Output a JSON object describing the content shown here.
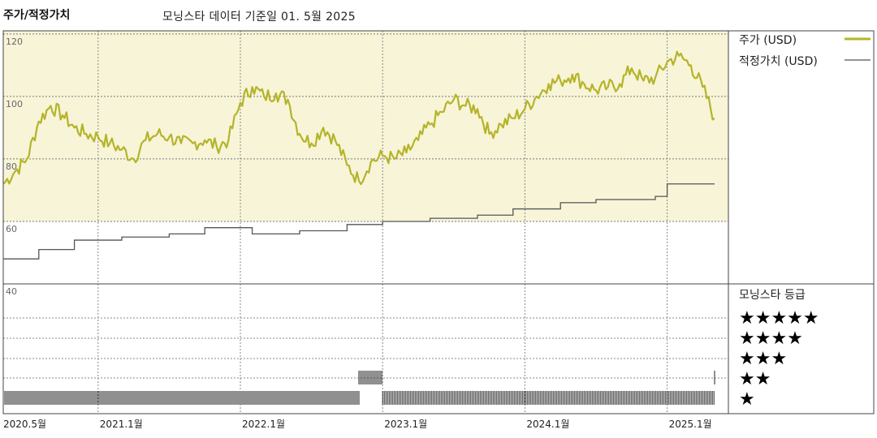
{
  "header": {
    "left_title": "주가/적정가치",
    "data_note": "모닝스타 데이터 기준일 01. 5월 2025"
  },
  "legend": {
    "price_label": "주가 (USD)",
    "fair_label": "적정가치 (USD)",
    "rating_title": "모닝스타 등급"
  },
  "colors": {
    "price_line": "#b4b42a",
    "fair_line": "#555555",
    "plot_bg": "#f8f4d8",
    "bars": "#222222"
  },
  "chart_data": {
    "type": "line",
    "y_axis": {
      "ticks": [
        40,
        60,
        80,
        100,
        120
      ],
      "ylim": [
        40,
        121
      ],
      "grid": true
    },
    "x_axis": {
      "tick_labels": [
        "2020.5월",
        "2021.1월",
        "2022.1월",
        "2023.1월",
        "2024.1월",
        "2025.1월"
      ],
      "tick_dates": [
        "2020-05",
        "2021-01",
        "2022-01",
        "2023-01",
        "2024-01",
        "2025-01"
      ],
      "xlim": [
        "2020-05",
        "2025-05"
      ]
    },
    "series": [
      {
        "name": "주가 (USD)",
        "points": [
          [
            "2020-05",
            72
          ],
          [
            "2020-06",
            76
          ],
          [
            "2020-07",
            80
          ],
          [
            "2020-08",
            92
          ],
          [
            "2020-09",
            97
          ],
          [
            "2020-10",
            94
          ],
          [
            "2020-11",
            90
          ],
          [
            "2020-12",
            88
          ],
          [
            "2021-01",
            87
          ],
          [
            "2021-02",
            85
          ],
          [
            "2021-03",
            83
          ],
          [
            "2021-04",
            80
          ],
          [
            "2021-05",
            86
          ],
          [
            "2021-06",
            88
          ],
          [
            "2021-07",
            87
          ],
          [
            "2021-08",
            85
          ],
          [
            "2021-09",
            85
          ],
          [
            "2021-10",
            86
          ],
          [
            "2021-11",
            84
          ],
          [
            "2021-12",
            86
          ],
          [
            "2022-01",
            98
          ],
          [
            "2022-02",
            103
          ],
          [
            "2022-03",
            100
          ],
          [
            "2022-04",
            101
          ],
          [
            "2022-05",
            99
          ],
          [
            "2022-06",
            88
          ],
          [
            "2022-07",
            85
          ],
          [
            "2022-08",
            90
          ],
          [
            "2022-09",
            86
          ],
          [
            "2022-10",
            78
          ],
          [
            "2022-11",
            73
          ],
          [
            "2022-12",
            79
          ],
          [
            "2023-01",
            81
          ],
          [
            "2023-02",
            80
          ],
          [
            "2023-03",
            82
          ],
          [
            "2023-04",
            86
          ],
          [
            "2023-05",
            91
          ],
          [
            "2023-06",
            95
          ],
          [
            "2023-07",
            99
          ],
          [
            "2023-08",
            97
          ],
          [
            "2023-09",
            96
          ],
          [
            "2023-10",
            88
          ],
          [
            "2023-11",
            91
          ],
          [
            "2023-12",
            93
          ],
          [
            "2024-01",
            96
          ],
          [
            "2024-02",
            100
          ],
          [
            "2024-03",
            104
          ],
          [
            "2024-04",
            105
          ],
          [
            "2024-05",
            107
          ],
          [
            "2024-06",
            104
          ],
          [
            "2024-07",
            102
          ],
          [
            "2024-08",
            103
          ],
          [
            "2024-09",
            104
          ],
          [
            "2024-10",
            109
          ],
          [
            "2024-11",
            105
          ],
          [
            "2024-12",
            106
          ],
          [
            "2025-01",
            111
          ],
          [
            "2025-02",
            113
          ],
          [
            "2025-03",
            110
          ],
          [
            "2025-04",
            103
          ],
          [
            "2025-05",
            93
          ]
        ]
      },
      {
        "name": "적정가치 (USD)",
        "steps": [
          [
            "2020-05",
            48
          ],
          [
            "2020-08",
            51
          ],
          [
            "2020-11",
            54
          ],
          [
            "2021-03",
            55
          ],
          [
            "2021-07",
            56
          ],
          [
            "2021-10",
            58
          ],
          [
            "2022-02",
            56
          ],
          [
            "2022-06",
            57
          ],
          [
            "2022-10",
            59
          ],
          [
            "2023-01",
            60
          ],
          [
            "2023-05",
            61
          ],
          [
            "2023-09",
            62
          ],
          [
            "2023-12",
            64
          ],
          [
            "2024-04",
            66
          ],
          [
            "2024-07",
            67
          ],
          [
            "2024-12",
            68
          ],
          [
            "2025-01",
            72
          ],
          [
            "2025-05",
            72
          ]
        ]
      }
    ],
    "rating": {
      "levels": [
        "★★★★★",
        "★★★★",
        "★★★",
        "★★",
        "★"
      ],
      "periods": [
        {
          "from": "2020-05",
          "to": "2022-11",
          "stars": 1
        },
        {
          "from": "2022-11",
          "to": "2023-01",
          "stars": 2
        },
        {
          "from": "2023-01",
          "to": "2025-05",
          "stars": 1
        },
        {
          "from": "2025-05",
          "to": "2025-05",
          "stars": 2
        }
      ]
    }
  }
}
